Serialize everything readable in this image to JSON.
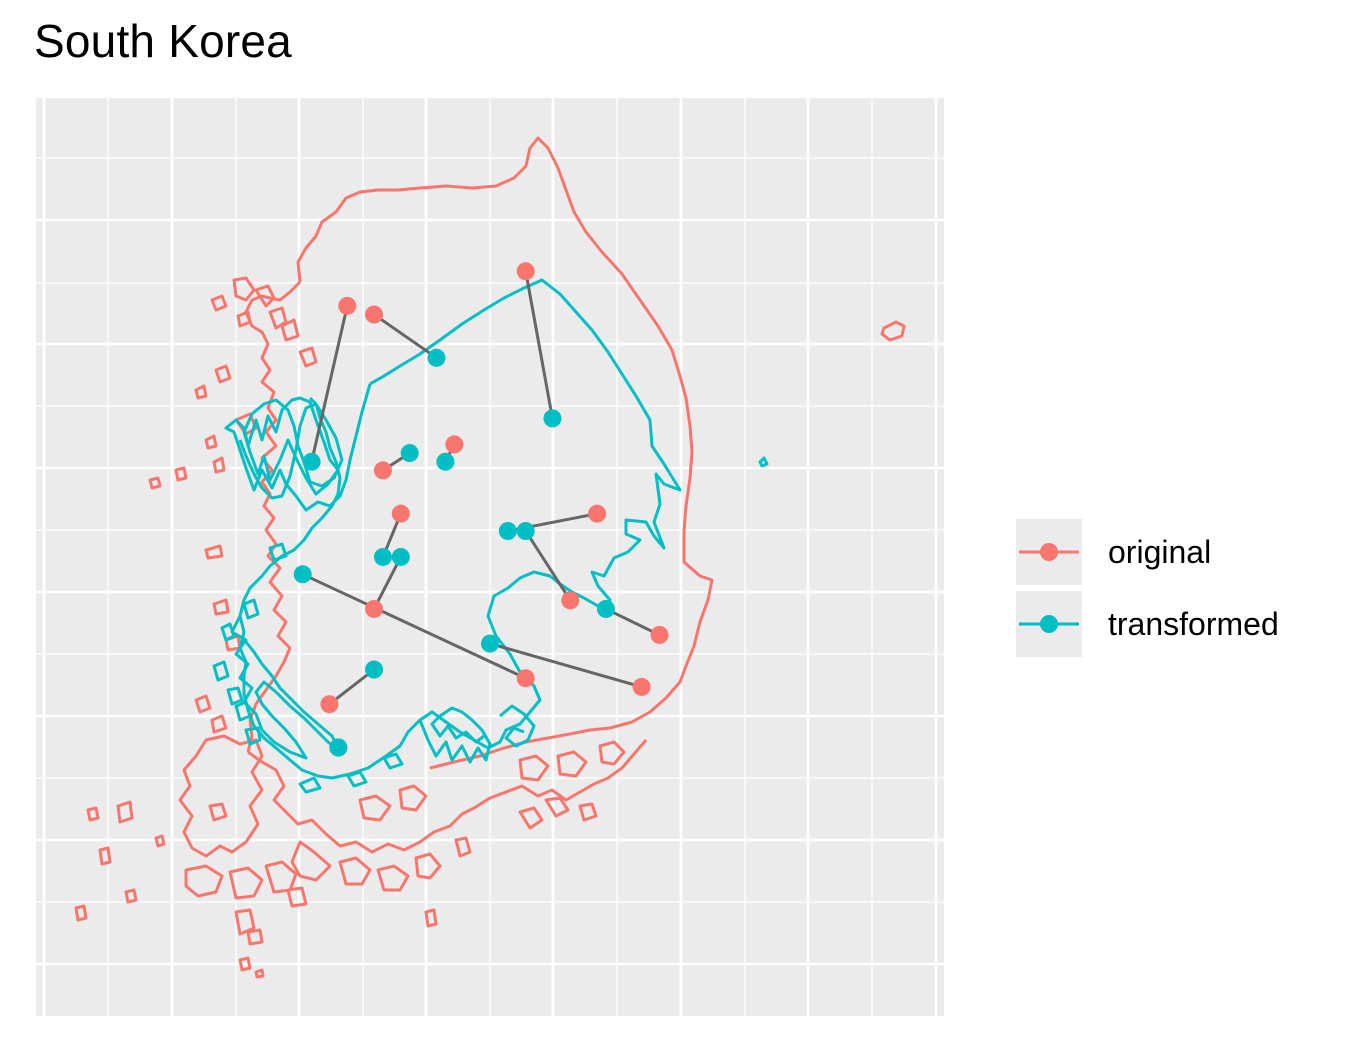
{
  "title": "South Korea",
  "colors": {
    "original": "#F8766D",
    "transformed": "#00BFC4",
    "connector": "#666666",
    "panel": "#EBEBEB",
    "grid": "#FFFFFF"
  },
  "legend": {
    "items": [
      {
        "key": "original",
        "label": "original"
      },
      {
        "key": "transformed",
        "label": "transformed"
      }
    ]
  },
  "chart_data": {
    "type": "scatter",
    "title": "South Korea",
    "xlabel": "",
    "ylabel": "",
    "axis_text_shown": false,
    "grid": true,
    "legend_position": "right",
    "note": "Map of South Korea: original outline (red) and transformed outline (teal); grey segments connect each original point to its transformed point.",
    "xlim": [
      0,
      100
    ],
    "ylim": [
      0,
      100
    ],
    "series": [
      {
        "name": "original",
        "points": [
          [
            34,
            76
          ],
          [
            37,
            75
          ],
          [
            54,
            80
          ],
          [
            46,
            60
          ],
          [
            38,
            57
          ],
          [
            40,
            52
          ],
          [
            37,
            41
          ],
          [
            62,
            52
          ],
          [
            59,
            42
          ],
          [
            69,
            38
          ],
          [
            67,
            32
          ],
          [
            54,
            33
          ],
          [
            32,
            30
          ],
          [
            33,
            25
          ]
        ]
      },
      {
        "name": "transformed",
        "points": [
          [
            30,
            58
          ],
          [
            44,
            70
          ],
          [
            57,
            63
          ],
          [
            45,
            58
          ],
          [
            41,
            59
          ],
          [
            38,
            47
          ],
          [
            40,
            47
          ],
          [
            52,
            50
          ],
          [
            54,
            50
          ],
          [
            63,
            41
          ],
          [
            50,
            37
          ],
          [
            29,
            45
          ],
          [
            37,
            34
          ],
          [
            33,
            25
          ]
        ]
      }
    ]
  }
}
